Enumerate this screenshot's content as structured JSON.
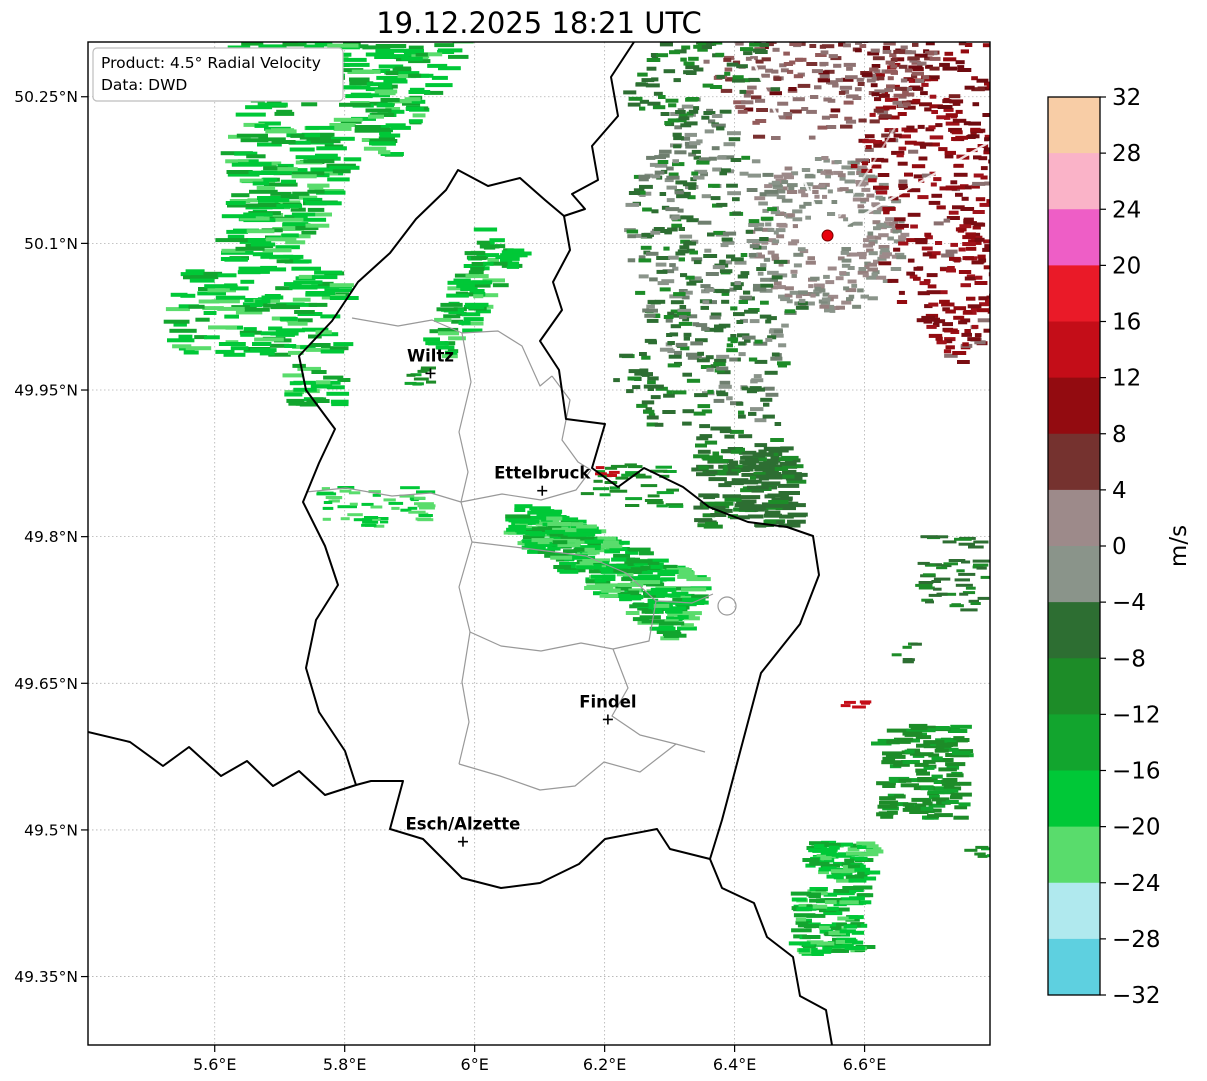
{
  "title": "19.12.2025 18:21 UTC",
  "info_box": {
    "line1": "Product: 4.5° Radial Velocity",
    "line2": "Data: DWD"
  },
  "chart_data": {
    "type": "radar_velocity_map",
    "title": "19.12.2025 18:21 UTC",
    "product": "4.5° Radial Velocity",
    "data_source": "DWD",
    "units": "m/s",
    "extent": {
      "lon_min": 5.405,
      "lon_max": 6.793,
      "lat_min": 49.28,
      "lat_max": 50.306
    },
    "x_ticks": [
      {
        "label": "5.6°E",
        "lon": 5.6
      },
      {
        "label": "5.8°E",
        "lon": 5.8
      },
      {
        "label": "6°E",
        "lon": 6.0
      },
      {
        "label": "6.2°E",
        "lon": 6.2
      },
      {
        "label": "6.4°E",
        "lon": 6.4
      },
      {
        "label": "6.6°E",
        "lon": 6.6
      }
    ],
    "y_ticks": [
      {
        "label": "50.25°N",
        "lat": 50.25
      },
      {
        "label": "50.1°N",
        "lat": 50.1
      },
      {
        "label": "49.95°N",
        "lat": 49.95
      },
      {
        "label": "49.8°N",
        "lat": 49.8
      },
      {
        "label": "49.65°N",
        "lat": 49.65
      },
      {
        "label": "49.5°N",
        "lat": 49.5
      },
      {
        "label": "49.35°N",
        "lat": 49.35
      }
    ],
    "radar_site": {
      "lon": 6.543,
      "lat": 50.108,
      "color": "#e8000b"
    },
    "cities": [
      {
        "name": "Wiltz",
        "lon": 5.932,
        "lat": 49.967
      },
      {
        "name": "Ettelbruck",
        "lon": 6.104,
        "lat": 49.847
      },
      {
        "name": "Findel",
        "lon": 6.205,
        "lat": 49.613
      },
      {
        "name": "Esch/Alzette",
        "lon": 5.982,
        "lat": 49.488
      }
    ],
    "colorbar": {
      "label": "m/s",
      "vmin": -32,
      "vmax": 32,
      "tick_step": 4,
      "ticks": [
        "32",
        "28",
        "24",
        "20",
        "16",
        "12",
        "8",
        "4",
        "0",
        "−4",
        "−8",
        "−12",
        "−16",
        "−20",
        "−24",
        "−28",
        "−32"
      ],
      "segment_colors_top_to_bottom": [
        "#f8cda6",
        "#fab3c8",
        "#ee5ec6",
        "#ea1a28",
        "#c40d18",
        "#930b10",
        "#75322f",
        "#9d8a8a",
        "#8a948a",
        "#2d6e32",
        "#1d8c28",
        "#12a52e",
        "#00c837",
        "#59dc6c",
        "#b0e9ee",
        "#5ed0e0"
      ]
    },
    "palettes": {
      "bright_green": [
        {
          "c": "#00c837",
          "w": 5
        },
        {
          "c": "#12a52e",
          "w": 3
        },
        {
          "c": "#59dc6c",
          "w": 2
        }
      ],
      "light_green": [
        {
          "c": "#59dc6c",
          "w": 3
        },
        {
          "c": "#00c837",
          "w": 2
        }
      ],
      "mid_green": [
        {
          "c": "#1d8c28",
          "w": 3
        },
        {
          "c": "#12a52e",
          "w": 2
        }
      ],
      "dark_green": [
        {
          "c": "#2d6e32",
          "w": 3
        },
        {
          "c": "#1d8c28",
          "w": 2
        }
      ],
      "radar_green": [
        {
          "c": "#2d6e32",
          "w": 4
        },
        {
          "c": "#1d8c28",
          "w": 2
        },
        {
          "c": "#6f7f6f",
          "w": 2
        },
        {
          "c": "#8a948a",
          "w": 2
        }
      ],
      "radar_red": [
        {
          "c": "#7a0d12",
          "w": 4
        },
        {
          "c": "#930b10",
          "w": 3
        },
        {
          "c": "#a0121a",
          "w": 2
        },
        {
          "c": "#8a6f6f",
          "w": 1
        }
      ],
      "dark_red": [
        {
          "c": "#6e0a0f",
          "w": 3
        },
        {
          "c": "#930b10",
          "w": 2
        },
        {
          "c": "#7a2020",
          "w": 1
        }
      ],
      "gray_mix": [
        {
          "c": "#9d8a8a",
          "w": 3
        },
        {
          "c": "#8a948a",
          "w": 3
        },
        {
          "c": "#7d8a7d",
          "w": 2
        },
        {
          "c": "#96807f",
          "w": 2
        }
      ],
      "maroon_gray": [
        {
          "c": "#8f7272",
          "w": 3
        },
        {
          "c": "#7a3030",
          "w": 2
        },
        {
          "c": "#935b5b",
          "w": 2
        },
        {
          "c": "#6e0a0f",
          "w": 1
        }
      ],
      "red": [
        {
          "c": "#c40d18",
          "w": 1
        }
      ]
    },
    "echo_regions": [
      {
        "name": "nw-band-main",
        "shape": "band",
        "lon0": 5.77,
        "lat0": 50.32,
        "lon1": 5.672,
        "lat1": 50.075,
        "hw0": 0.14,
        "hw1": 0.05,
        "palette": "bright_green",
        "count": 290,
        "bar": [
          14,
          34,
          4
        ]
      },
      {
        "name": "nw-band-right",
        "shape": "band",
        "lon0": 5.95,
        "lat0": 50.32,
        "lon1": 5.85,
        "lat1": 50.195,
        "hw0": 0.045,
        "hw1": 0.03,
        "palette": "bright_green",
        "count": 85,
        "bar": [
          12,
          28,
          4
        ]
      },
      {
        "name": "nw-cluster",
        "shape": "bbox",
        "lon0": 5.54,
        "lat0": 50.075,
        "lon1": 5.8,
        "lat1": 49.985,
        "palette": "bright_green",
        "count": 130,
        "bar": [
          12,
          30,
          4
        ]
      },
      {
        "name": "nw-tip",
        "shape": "bbox",
        "lon0": 5.72,
        "lat0": 49.978,
        "lon1": 5.8,
        "lat1": 49.935,
        "palette": "bright_green",
        "count": 28,
        "bar": [
          10,
          24,
          4
        ]
      },
      {
        "name": "wiltz-band",
        "shape": "band",
        "lon0": 6.045,
        "lat0": 50.105,
        "lon1": 5.95,
        "lat1": 49.988,
        "hw0": 0.035,
        "hw1": 0.025,
        "palette": "bright_green",
        "count": 90,
        "bar": [
          10,
          24,
          4
        ]
      },
      {
        "name": "wiltz-tiny",
        "shape": "bbox",
        "lon0": 5.9,
        "lat0": 49.978,
        "lon1": 5.935,
        "lat1": 49.952,
        "palette": "mid_green",
        "count": 10,
        "bar": [
          8,
          16,
          3
        ]
      },
      {
        "name": "center-west-streaks",
        "shape": "bbox",
        "lon0": 5.77,
        "lat0": 49.852,
        "lon1": 5.935,
        "lat1": 49.81,
        "palette": "light_green",
        "count": 50,
        "bar": [
          8,
          20,
          3
        ]
      },
      {
        "name": "central-band",
        "shape": "band",
        "lon0": 6.065,
        "lat0": 49.822,
        "lon1": 6.34,
        "lat1": 49.722,
        "hw0": 0.03,
        "hw1": 0.055,
        "palette": "bright_green",
        "count": 340,
        "bar": [
          10,
          26,
          4
        ]
      },
      {
        "name": "central-upper",
        "shape": "bbox",
        "lon0": 6.17,
        "lat0": 49.875,
        "lon1": 6.31,
        "lat1": 49.83,
        "palette": "mid_green",
        "count": 35,
        "bar": [
          8,
          18,
          3
        ]
      },
      {
        "name": "central-red-speck",
        "shape": "bbox",
        "lon0": 6.185,
        "lat0": 49.872,
        "lon1": 6.215,
        "lat1": 49.862,
        "palette": "red",
        "count": 4,
        "bar": [
          8,
          12,
          3
        ]
      },
      {
        "name": "east-dark-patch",
        "shape": "bbox",
        "lon0": 6.345,
        "lat0": 49.89,
        "lon1": 6.5,
        "lat1": 49.81,
        "palette": "dark_green",
        "count": 150,
        "bar": [
          10,
          22,
          4
        ]
      },
      {
        "name": "right-streaks",
        "shape": "bbox",
        "lon0": 6.69,
        "lat0": 49.8,
        "lon1": 6.792,
        "lat1": 49.725,
        "palette": "dark_green",
        "count": 50,
        "bar": [
          8,
          18,
          3
        ]
      },
      {
        "name": "right-tiny",
        "shape": "bbox",
        "lon0": 6.645,
        "lat0": 49.692,
        "lon1": 6.68,
        "lat1": 49.672,
        "palette": "dark_green",
        "count": 7,
        "bar": [
          8,
          14,
          3
        ]
      },
      {
        "name": "right-red-dash",
        "shape": "bbox",
        "lon0": 6.565,
        "lat0": 49.637,
        "lon1": 6.605,
        "lat1": 49.623,
        "palette": "red",
        "count": 5,
        "bar": [
          8,
          14,
          3
        ]
      },
      {
        "name": "right-cluster",
        "shape": "bbox",
        "lon0": 6.625,
        "lat0": 49.607,
        "lon1": 6.755,
        "lat1": 49.512,
        "palette": "mid_green",
        "count": 140,
        "bar": [
          10,
          22,
          4
        ]
      },
      {
        "name": "right-edge-dash",
        "shape": "bbox",
        "lon0": 6.762,
        "lat0": 49.487,
        "lon1": 6.795,
        "lat1": 49.468,
        "palette": "mid_green",
        "count": 6,
        "bar": [
          8,
          14,
          3
        ]
      },
      {
        "name": "bottom-right-a",
        "shape": "bbox",
        "lon0": 6.515,
        "lat0": 49.487,
        "lon1": 6.617,
        "lat1": 49.448,
        "palette": "bright_green",
        "count": 70,
        "bar": [
          10,
          22,
          4
        ]
      },
      {
        "name": "bottom-right-b",
        "shape": "bbox",
        "lon0": 6.498,
        "lat0": 49.442,
        "lon1": 6.602,
        "lat1": 49.373,
        "palette": "bright_green",
        "count": 120,
        "bar": [
          10,
          22,
          4
        ]
      },
      {
        "name": "radar-core",
        "shape": "sector",
        "lon": 6.543,
        "lat": 50.108,
        "az0": 0,
        "az1": 360,
        "r0": 18,
        "r1": 78,
        "palette": "gray_mix",
        "count": 280,
        "bar": [
          5,
          11,
          4
        ]
      },
      {
        "name": "radar-east-red",
        "shape": "sector",
        "lon": 6.543,
        "lat": 50.108,
        "az0": -70,
        "az1": 45,
        "r0": 55,
        "r1": 190,
        "palette": "radar_red",
        "count": 340,
        "bar": [
          6,
          14,
          4
        ]
      },
      {
        "name": "radar-ne-far-red",
        "shape": "sector",
        "lon": 6.543,
        "lat": 50.108,
        "az0": -80,
        "az1": -8,
        "r0": 150,
        "r1": 285,
        "palette": "dark_red",
        "count": 220,
        "bar": [
          6,
          15,
          4
        ]
      },
      {
        "name": "radar-west-green",
        "shape": "sector",
        "lon": 6.543,
        "lat": 50.108,
        "az0": 108,
        "az1": 228,
        "r0": 50,
        "r1": 198,
        "palette": "radar_green",
        "count": 400,
        "bar": [
          6,
          14,
          4
        ]
      },
      {
        "name": "radar-north-gray",
        "shape": "sector",
        "lon": 6.543,
        "lat": 50.108,
        "az0": 235,
        "az1": 302,
        "r0": 85,
        "r1": 212,
        "palette": "maroon_gray",
        "count": 230,
        "bar": [
          6,
          13,
          4
        ]
      },
      {
        "name": "radar-nnw-green",
        "shape": "sector",
        "lon": 6.543,
        "lat": 50.108,
        "az0": 213,
        "az1": 252,
        "r0": 150,
        "r1": 252,
        "palette": "dark_green",
        "count": 100,
        "bar": [
          6,
          14,
          4
        ]
      },
      {
        "name": "radar-sw-scatter",
        "shape": "sector",
        "lon": 6.543,
        "lat": 50.108,
        "az0": 100,
        "az1": 150,
        "r0": 185,
        "r1": 258,
        "palette": "dark_green",
        "count": 80,
        "bar": [
          6,
          14,
          4
        ]
      }
    ]
  }
}
